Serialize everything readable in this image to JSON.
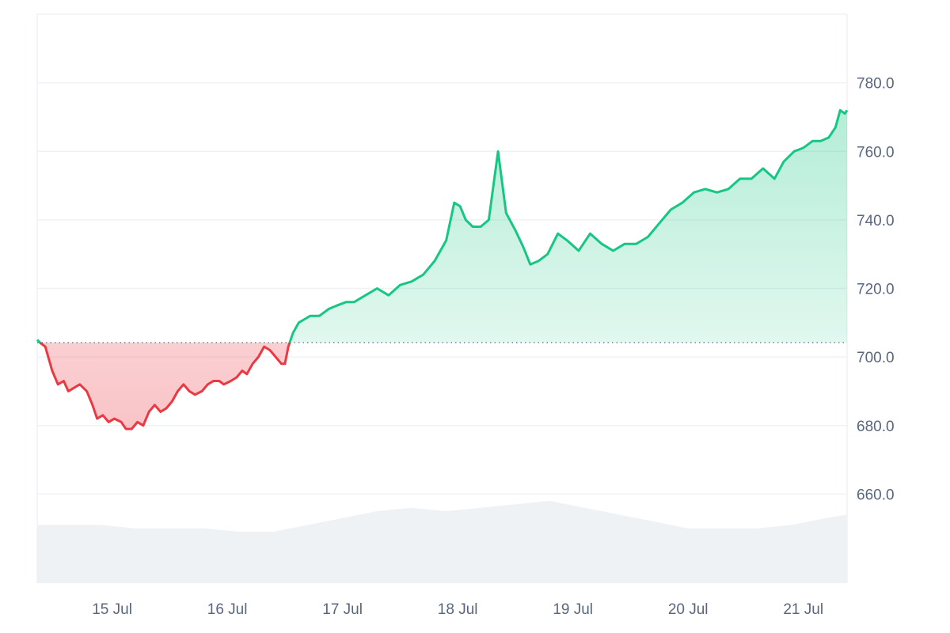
{
  "chart_data": {
    "type": "area",
    "baseline": 704.2,
    "ylim": [
      634,
      800
    ],
    "yticks": [
      "660.0",
      "680.0",
      "700.0",
      "720.0",
      "740.0",
      "760.0",
      "780.0"
    ],
    "ytick_values": [
      660,
      680,
      700,
      720,
      740,
      760,
      780
    ],
    "xticks": [
      "15 Jul",
      "16 Jul",
      "17 Jul",
      "18 Jul",
      "19 Jul",
      "20 Jul",
      "21 Jul"
    ],
    "x_range_days": [
      14.35,
      21.38
    ],
    "grid": true,
    "colors": {
      "up": "#16c784",
      "down": "#ea3943",
      "volume": "#eff2f5",
      "grid": "#eff2f5",
      "tick": "#58667e"
    },
    "series": [
      {
        "values": [
          [
            14.35,
            705
          ],
          [
            14.38,
            704
          ],
          [
            14.42,
            703
          ],
          [
            14.48,
            696
          ],
          [
            14.53,
            692
          ],
          [
            14.58,
            693
          ],
          [
            14.62,
            690
          ],
          [
            14.67,
            691
          ],
          [
            14.72,
            692
          ],
          [
            14.78,
            690
          ],
          [
            14.83,
            686
          ],
          [
            14.87,
            682
          ],
          [
            14.92,
            683
          ],
          [
            14.97,
            681
          ],
          [
            15.02,
            682
          ],
          [
            15.08,
            681
          ],
          [
            15.12,
            679
          ],
          [
            15.17,
            679
          ],
          [
            15.22,
            681
          ],
          [
            15.27,
            680
          ],
          [
            15.32,
            684
          ],
          [
            15.37,
            686
          ],
          [
            15.42,
            684
          ],
          [
            15.47,
            685
          ],
          [
            15.52,
            687
          ],
          [
            15.57,
            690
          ],
          [
            15.62,
            692
          ],
          [
            15.67,
            690
          ],
          [
            15.72,
            689
          ],
          [
            15.78,
            690
          ],
          [
            15.83,
            692
          ],
          [
            15.88,
            693
          ],
          [
            15.93,
            693
          ],
          [
            15.97,
            692
          ],
          [
            16.03,
            693
          ],
          [
            16.08,
            694
          ],
          [
            16.13,
            696
          ],
          [
            16.17,
            695
          ],
          [
            16.22,
            698
          ],
          [
            16.27,
            700
          ],
          [
            16.32,
            703
          ],
          [
            16.37,
            702
          ],
          [
            16.42,
            700
          ],
          [
            16.47,
            698
          ],
          [
            16.5,
            698
          ],
          [
            16.53,
            703
          ],
          [
            16.57,
            707
          ],
          [
            16.62,
            710
          ],
          [
            16.67,
            711
          ],
          [
            16.72,
            712
          ],
          [
            16.8,
            712
          ],
          [
            16.88,
            714
          ],
          [
            16.95,
            715
          ],
          [
            17.03,
            716
          ],
          [
            17.1,
            716
          ],
          [
            17.2,
            718
          ],
          [
            17.3,
            720
          ],
          [
            17.4,
            718
          ],
          [
            17.5,
            721
          ],
          [
            17.6,
            722
          ],
          [
            17.7,
            724
          ],
          [
            17.8,
            728
          ],
          [
            17.9,
            734
          ],
          [
            17.97,
            745
          ],
          [
            18.02,
            744
          ],
          [
            18.07,
            740
          ],
          [
            18.13,
            738
          ],
          [
            18.2,
            738
          ],
          [
            18.27,
            740
          ],
          [
            18.35,
            760
          ],
          [
            18.42,
            742
          ],
          [
            18.5,
            737
          ],
          [
            18.57,
            732
          ],
          [
            18.63,
            727
          ],
          [
            18.7,
            728
          ],
          [
            18.78,
            730
          ],
          [
            18.87,
            736
          ],
          [
            18.95,
            734
          ],
          [
            19.05,
            731
          ],
          [
            19.15,
            736
          ],
          [
            19.25,
            733
          ],
          [
            19.35,
            731
          ],
          [
            19.45,
            733
          ],
          [
            19.55,
            733
          ],
          [
            19.65,
            735
          ],
          [
            19.75,
            739
          ],
          [
            19.85,
            743
          ],
          [
            19.95,
            745
          ],
          [
            20.05,
            748
          ],
          [
            20.15,
            749
          ],
          [
            20.25,
            748
          ],
          [
            20.35,
            749
          ],
          [
            20.45,
            752
          ],
          [
            20.55,
            752
          ],
          [
            20.65,
            755
          ],
          [
            20.75,
            752
          ],
          [
            20.83,
            757
          ],
          [
            20.92,
            760
          ],
          [
            21.0,
            761
          ],
          [
            21.08,
            763
          ],
          [
            21.15,
            763
          ],
          [
            21.22,
            764
          ],
          [
            21.28,
            767
          ],
          [
            21.32,
            772
          ],
          [
            21.36,
            771
          ],
          [
            21.38,
            772
          ]
        ]
      },
      {
        "name": "",
        "values": [
          [
            14.35,
            651
          ],
          [
            14.6,
            651
          ],
          [
            14.9,
            651
          ],
          [
            15.2,
            650
          ],
          [
            15.5,
            650
          ],
          [
            15.8,
            650
          ],
          [
            16.1,
            649
          ],
          [
            16.4,
            649
          ],
          [
            16.7,
            651
          ],
          [
            17.0,
            653
          ],
          [
            17.3,
            655
          ],
          [
            17.6,
            656
          ],
          [
            17.9,
            655
          ],
          [
            18.2,
            656
          ],
          [
            18.5,
            657
          ],
          [
            18.8,
            658
          ],
          [
            19.1,
            656
          ],
          [
            19.4,
            654
          ],
          [
            19.7,
            652
          ],
          [
            20.0,
            650
          ],
          [
            20.3,
            650
          ],
          [
            20.6,
            650
          ],
          [
            20.9,
            651
          ],
          [
            21.2,
            653
          ],
          [
            21.38,
            654
          ]
        ]
      }
    ]
  }
}
